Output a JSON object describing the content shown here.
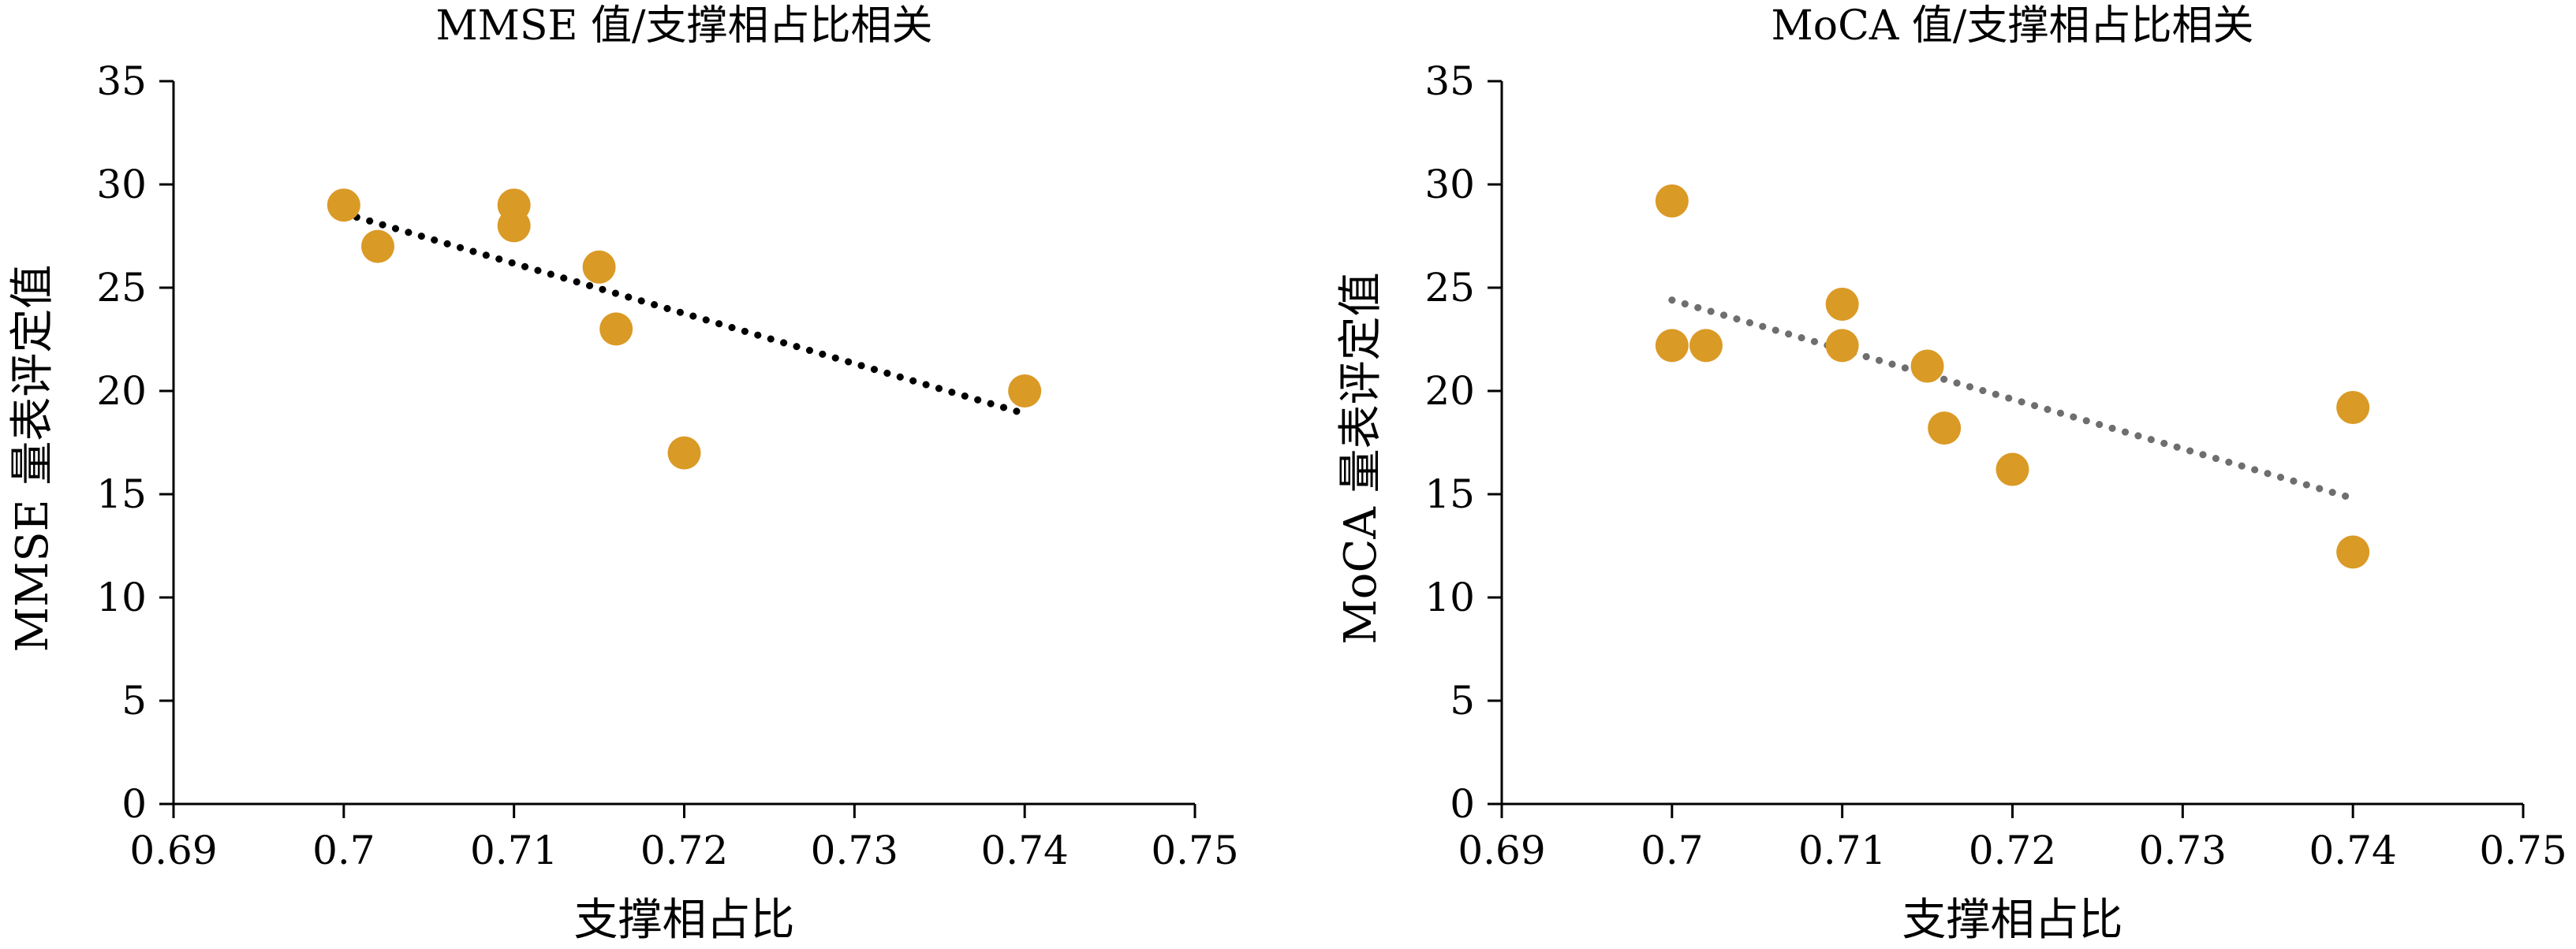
{
  "chart_data": [
    {
      "type": "scatter",
      "title": "MMSE 值/支撑相占比相关",
      "xlabel": "支撑相占比",
      "ylabel": "MMSE 量表评定值",
      "xlim": [
        0.69,
        0.75
      ],
      "ylim": [
        0,
        35
      ],
      "xticks": [
        0.69,
        0.7,
        0.71,
        0.72,
        0.73,
        0.74,
        0.75
      ],
      "xtick_labels": [
        "0.69",
        "0.7",
        "0.71",
        "0.72",
        "0.73",
        "0.74",
        "0.75"
      ],
      "yticks": [
        0,
        5,
        10,
        15,
        20,
        25,
        30,
        35
      ],
      "ytick_labels": [
        "0",
        "5",
        "10",
        "15",
        "20",
        "25",
        "30",
        "35"
      ],
      "grid": false,
      "legend": "none",
      "point_color": "#DA9A26",
      "trend_color": "#000000",
      "points": [
        {
          "x": 0.7,
          "y": 29
        },
        {
          "x": 0.702,
          "y": 27
        },
        {
          "x": 0.71,
          "y": 29
        },
        {
          "x": 0.71,
          "y": 28
        },
        {
          "x": 0.715,
          "y": 26
        },
        {
          "x": 0.716,
          "y": 23
        },
        {
          "x": 0.72,
          "y": 17
        },
        {
          "x": 0.74,
          "y": 20
        }
      ],
      "trendline": {
        "x": [
          0.7,
          0.74
        ],
        "y": [
          28.6,
          18.9
        ]
      }
    },
    {
      "type": "scatter",
      "title": "MoCA 值/支撑相占比相关",
      "xlabel": "支撑相占比",
      "ylabel": "MoCA 量表评定值",
      "xlim": [
        0.69,
        0.75
      ],
      "ylim": [
        0,
        35
      ],
      "xticks": [
        0.69,
        0.7,
        0.71,
        0.72,
        0.73,
        0.74,
        0.75
      ],
      "xtick_labels": [
        "0.69",
        "0.7",
        "0.71",
        "0.72",
        "0.73",
        "0.74",
        "0.75"
      ],
      "yticks": [
        0,
        5,
        10,
        15,
        20,
        25,
        30,
        35
      ],
      "ytick_labels": [
        "0",
        "5",
        "10",
        "15",
        "20",
        "25",
        "30",
        "35"
      ],
      "grid": false,
      "legend": "none",
      "point_color": "#DA9A26",
      "trend_color": "#6E6E6E",
      "points": [
        {
          "x": 0.7,
          "y": 29.2
        },
        {
          "x": 0.7,
          "y": 22.2
        },
        {
          "x": 0.702,
          "y": 22.2
        },
        {
          "x": 0.71,
          "y": 24.2
        },
        {
          "x": 0.71,
          "y": 22.2
        },
        {
          "x": 0.715,
          "y": 21.2
        },
        {
          "x": 0.716,
          "y": 18.2
        },
        {
          "x": 0.72,
          "y": 16.2
        },
        {
          "x": 0.74,
          "y": 19.2
        },
        {
          "x": 0.74,
          "y": 12.2
        }
      ],
      "trendline": {
        "x": [
          0.7,
          0.74
        ],
        "y": [
          24.4,
          14.8
        ]
      }
    }
  ]
}
